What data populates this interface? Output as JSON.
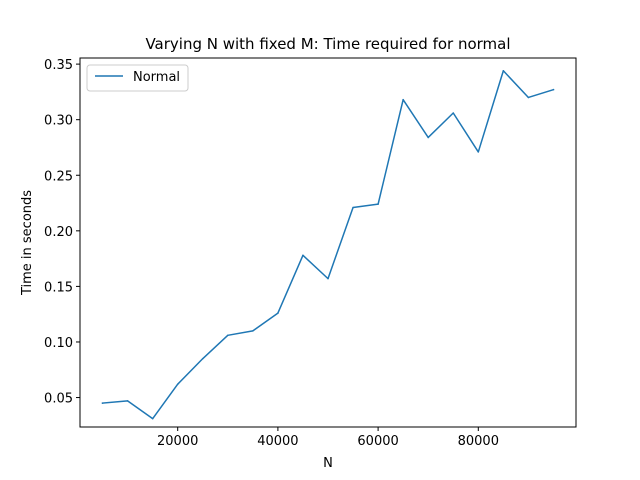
{
  "chart_data": {
    "type": "line",
    "title": "Varying N with fixed M: Time required for normal",
    "xlabel": "N",
    "ylabel": "Time in seconds",
    "xlim": [
      500,
      99500
    ],
    "ylim": [
      0.0235,
      0.3555
    ],
    "xticks": [
      20000,
      40000,
      60000,
      80000
    ],
    "xtick_labels": [
      "20000",
      "40000",
      "60000",
      "80000"
    ],
    "yticks": [
      0.05,
      0.1,
      0.15,
      0.2,
      0.25,
      0.3,
      0.35
    ],
    "ytick_labels": [
      "0.05",
      "0.10",
      "0.15",
      "0.20",
      "0.25",
      "0.30",
      "0.35"
    ],
    "grid": false,
    "legend_position": "top-left",
    "series": [
      {
        "name": "Normal",
        "color": "#1f77b4",
        "x": [
          5000,
          10000,
          15000,
          20000,
          25000,
          30000,
          35000,
          40000,
          45000,
          50000,
          55000,
          60000,
          65000,
          70000,
          75000,
          80000,
          85000,
          90000,
          95000
        ],
        "y": [
          0.045,
          0.047,
          0.031,
          0.062,
          0.085,
          0.106,
          0.11,
          0.126,
          0.178,
          0.157,
          0.221,
          0.224,
          0.318,
          0.284,
          0.306,
          0.271,
          0.344,
          0.32,
          0.327
        ]
      }
    ]
  }
}
